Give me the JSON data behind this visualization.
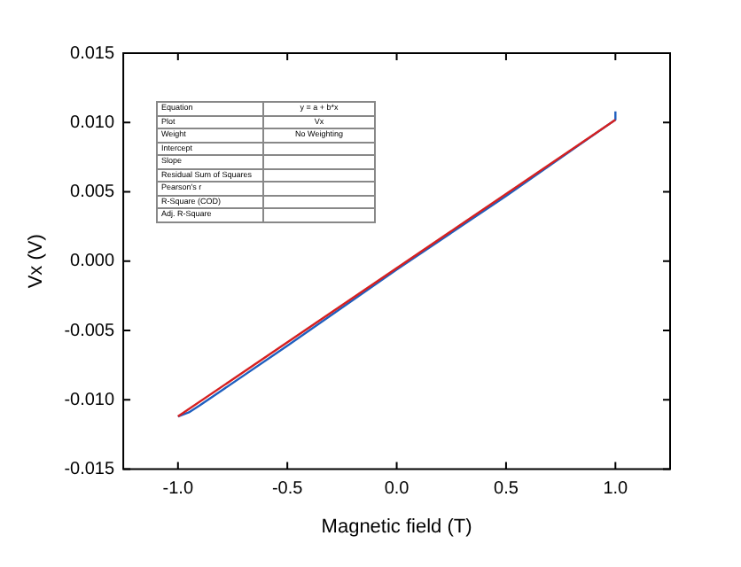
{
  "chart_data": {
    "type": "line",
    "xlabel": "Magnetic field (T)",
    "ylabel": "Vx (V)",
    "xlim": [
      -1.25,
      1.25
    ],
    "xticks": [
      {
        "value": -1,
        "label": "-1.0"
      },
      {
        "value": -0.5,
        "label": "-0.5"
      },
      {
        "value": 0,
        "label": "0.0"
      },
      {
        "value": 0.5,
        "label": "0.5"
      },
      {
        "value": 1,
        "label": "1.0"
      }
    ],
    "ylim": [
      -0.015,
      0.015
    ],
    "yticks": [
      {
        "value": -0.015,
        "label": "-0.015"
      },
      {
        "value": -0.01,
        "label": "-0.010"
      },
      {
        "value": -0.005,
        "label": "-0.005"
      },
      {
        "value": 0,
        "label": "0.000"
      },
      {
        "value": 0.005,
        "label": "0.005"
      },
      {
        "value": 0.01,
        "label": "0.010"
      },
      {
        "value": 0.015,
        "label": "0.015"
      }
    ],
    "grid": false,
    "legend": false,
    "marker": "none",
    "line_style": "solid",
    "series": [
      {
        "color": "#1f5fbf",
        "x": [
          -1,
          -0.95,
          -0.9,
          -0.5,
          0,
          0.5,
          1,
          1
        ],
        "values": [
          -0.0112,
          -0.0109,
          -0.0104,
          -0.0061,
          -0.0006,
          0.0047,
          0.0102,
          0.0108
        ]
      },
      {
        "color": "#d62020",
        "x": [
          -1,
          1
        ],
        "values": [
          -0.0112,
          0.0102
        ]
      }
    ],
    "annotations": [
      "Equation",
      "Plot",
      "Weight",
      "Intercept",
      "Slope",
      "Residual Sum of Squares",
      "Pearson's r",
      "R-Square (COD)",
      "Adj. R-Square",
      "y = a + b*x",
      "Vx",
      "No Weighting"
    ]
  }
}
